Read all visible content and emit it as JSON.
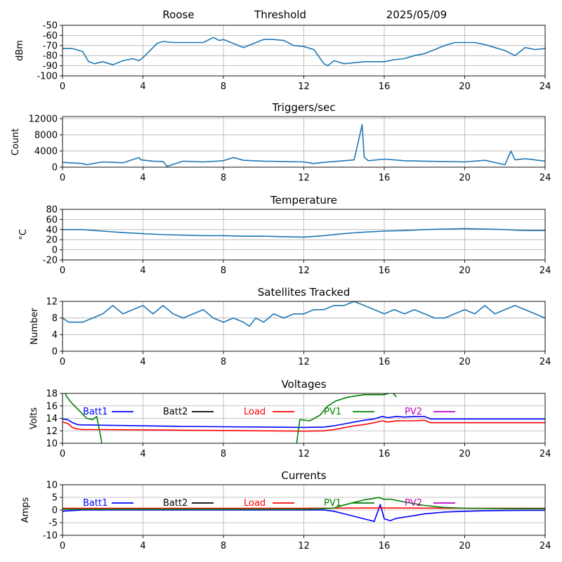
{
  "header": {
    "station": "Roose",
    "mode": "Threshold",
    "date": "2025/05/09"
  },
  "chart_data": [
    {
      "type": "line",
      "title": "",
      "xlabel": "",
      "ylabel": "dBm",
      "xlim": [
        0,
        24
      ],
      "ylim": [
        -100,
        -50
      ],
      "xticks": [
        0,
        4,
        8,
        12,
        16,
        20,
        24
      ],
      "yticks": [
        -100,
        -90,
        -80,
        -70,
        -60,
        -50
      ],
      "grid": true,
      "color": "#1f77b4",
      "series": [
        {
          "name": "",
          "x": [
            0,
            0.5,
            1,
            1.3,
            1.6,
            2,
            2.5,
            3,
            3.5,
            3.8,
            4,
            4.3,
            4.7,
            5,
            5.5,
            6,
            7,
            7.5,
            7.8,
            8,
            8.5,
            9,
            9.5,
            10,
            10.5,
            11,
            11.5,
            12,
            12.5,
            13,
            13.2,
            13.5,
            14,
            14.5,
            15,
            16,
            16.5,
            17,
            17.5,
            18,
            18.5,
            19,
            19.5,
            20,
            20.5,
            21,
            21.5,
            22,
            22.5,
            23,
            23.5,
            24
          ],
          "y": [
            -73,
            -73,
            -76,
            -86,
            -88,
            -86,
            -89,
            -85,
            -83,
            -85,
            -82,
            -76,
            -68,
            -66,
            -67,
            -67,
            -67,
            -62,
            -65,
            -64,
            -68,
            -72,
            -68,
            -64,
            -64,
            -65,
            -70,
            -71,
            -74,
            -88,
            -90,
            -85,
            -88,
            -87,
            -86,
            -86,
            -84,
            -83,
            -80,
            -78,
            -74,
            -70,
            -67,
            -67,
            -67,
            -69,
            -72,
            -75,
            -80,
            -72,
            -74,
            -73
          ]
        }
      ]
    },
    {
      "type": "line",
      "title": "Triggers/sec",
      "xlabel": "",
      "ylabel": "Count",
      "xlim": [
        0,
        24
      ],
      "ylim": [
        0,
        12500
      ],
      "xticks": [
        0,
        4,
        8,
        12,
        16,
        20,
        24
      ],
      "yticks": [
        0,
        4000,
        8000,
        12000
      ],
      "grid": true,
      "color": "#1f77b4",
      "series": [
        {
          "name": "",
          "x": [
            0,
            1,
            1.2,
            2,
            3,
            3.8,
            3.9,
            4.5,
            5,
            5.2,
            6,
            7,
            8,
            8.5,
            9,
            10,
            11,
            12,
            12.5,
            13,
            13.5,
            14,
            14.5,
            14.9,
            15,
            15.2,
            16,
            16.5,
            17,
            18,
            19,
            20,
            21,
            22,
            22.3,
            22.5,
            23,
            24
          ],
          "y": [
            1200,
            900,
            600,
            1300,
            1100,
            2400,
            1800,
            1500,
            1400,
            200,
            1500,
            1300,
            1600,
            2400,
            1700,
            1500,
            1400,
            1300,
            900,
            1200,
            1400,
            1600,
            1800,
            10500,
            2500,
            1600,
            2000,
            1800,
            1600,
            1500,
            1400,
            1300,
            1700,
            600,
            4000,
            1800,
            2100,
            1500
          ]
        }
      ]
    },
    {
      "type": "line",
      "title": "Temperature",
      "xlabel": "",
      "ylabel": "°C",
      "xlim": [
        0,
        24
      ],
      "ylim": [
        -20,
        80
      ],
      "xticks": [
        0,
        4,
        8,
        12,
        16,
        20,
        24
      ],
      "yticks": [
        -20,
        0,
        20,
        40,
        60,
        80
      ],
      "grid": true,
      "color": "#1f77b4",
      "series": [
        {
          "name": "",
          "x": [
            0,
            1,
            2,
            3,
            4,
            5,
            6,
            7,
            8,
            9,
            10,
            11,
            12,
            13,
            14,
            15,
            16,
            17,
            18,
            19,
            20,
            21,
            22,
            23,
            24
          ],
          "y": [
            40,
            40,
            37,
            34,
            32,
            30,
            29,
            28,
            28,
            27,
            27,
            26,
            25,
            28,
            32,
            35,
            37,
            38,
            40,
            41,
            42,
            41,
            40,
            38,
            38
          ]
        }
      ]
    },
    {
      "type": "line",
      "title": "Satellites Tracked",
      "xlabel": "",
      "ylabel": "Number",
      "xlim": [
        0,
        24
      ],
      "ylim": [
        0,
        12
      ],
      "xticks": [
        0,
        4,
        8,
        12,
        16,
        20,
        24
      ],
      "yticks": [
        0,
        4,
        8,
        12
      ],
      "grid": true,
      "color": "#1f77b4",
      "series": [
        {
          "name": "",
          "x": [
            0,
            0.3,
            1,
            1.5,
            2,
            2.5,
            3,
            3.5,
            4,
            4.5,
            5,
            5.5,
            6,
            6.5,
            7,
            7.5,
            8,
            8.5,
            9,
            9.3,
            9.6,
            10,
            10.5,
            11,
            11.5,
            12,
            12.5,
            13,
            13.5,
            14,
            14.5,
            15,
            15.5,
            16,
            16.5,
            17,
            17.5,
            18,
            18.5,
            19,
            19.5,
            20,
            20.5,
            21,
            21.5,
            22,
            22.5,
            23,
            23.5,
            24
          ],
          "y": [
            8,
            7,
            7,
            8,
            9,
            11,
            9,
            10,
            11,
            9,
            11,
            9,
            8,
            9,
            10,
            8,
            7,
            8,
            7,
            6,
            8,
            7,
            9,
            8,
            9,
            9,
            10,
            10,
            11,
            11,
            12,
            11,
            10,
            9,
            10,
            9,
            10,
            9,
            8,
            8,
            9,
            10,
            9,
            11,
            9,
            10,
            11,
            10,
            9,
            8
          ]
        }
      ]
    },
    {
      "type": "line",
      "title": "Voltages",
      "xlabel": "",
      "ylabel": "Volts",
      "xlim": [
        0,
        24
      ],
      "ylim": [
        10,
        18
      ],
      "xticks": [
        0,
        4,
        8,
        12,
        16,
        20,
        24
      ],
      "yticks": [
        10,
        12,
        14,
        16,
        18
      ],
      "grid": true,
      "legend": "top",
      "series": [
        {
          "name": "Batt1",
          "color": "#0000ff",
          "x": [
            0,
            0.25,
            0.5,
            0.75,
            1,
            2,
            4,
            6,
            8,
            10,
            12,
            13,
            13.5,
            14,
            14.5,
            15,
            15.5,
            15.9,
            16.2,
            16.6,
            17,
            17.5,
            18,
            18.3,
            19,
            20,
            22,
            24
          ],
          "y": [
            13.9,
            13.8,
            13.3,
            13.0,
            12.95,
            12.9,
            12.8,
            12.7,
            12.65,
            12.6,
            12.55,
            12.6,
            12.8,
            13.1,
            13.4,
            13.7,
            13.9,
            14.3,
            14.1,
            14.3,
            14.2,
            14.3,
            14.3,
            13.9,
            13.9,
            13.9,
            13.9,
            13.9
          ]
        },
        {
          "name": "Batt2",
          "color": "#000000",
          "x": [],
          "y": []
        },
        {
          "name": "Load",
          "color": "#ff0000",
          "x": [
            0,
            0.25,
            0.5,
            0.75,
            1,
            2,
            4,
            6,
            8,
            10,
            12,
            13,
            13.5,
            14,
            14.5,
            15,
            15.5,
            15.9,
            16.2,
            16.6,
            17,
            17.5,
            18,
            18.3,
            19,
            20,
            22,
            24
          ],
          "y": [
            13.4,
            13.2,
            12.5,
            12.3,
            12.2,
            12.2,
            12.15,
            12.1,
            12.05,
            12.0,
            11.95,
            12.0,
            12.2,
            12.5,
            12.8,
            13.0,
            13.3,
            13.6,
            13.4,
            13.6,
            13.6,
            13.6,
            13.7,
            13.3,
            13.3,
            13.3,
            13.3,
            13.3
          ]
        },
        {
          "name": "PV1",
          "color": "#008000",
          "x": [
            0,
            0.2,
            0.5,
            0.9,
            1.2,
            1.5,
            1.7,
            1.9,
            2.0,
            11.6,
            11.8,
            12.3,
            12.8,
            13.2,
            13.6,
            14.2,
            15.0,
            16.0,
            16.4,
            16.6
          ],
          "y": [
            19.5,
            17.5,
            16.3,
            15.0,
            14.0,
            13.8,
            14.3,
            11.0,
            9.0,
            9.0,
            13.8,
            13.6,
            14.5,
            16.0,
            16.8,
            17.4,
            17.8,
            17.8,
            18.2,
            17.4
          ]
        },
        {
          "name": "PV2",
          "color": "#c000c0",
          "x": [],
          "y": []
        }
      ]
    },
    {
      "type": "line",
      "title": "Currents",
      "xlabel": "",
      "ylabel": "Amps",
      "xlim": [
        0,
        24
      ],
      "ylim": [
        -10,
        10
      ],
      "xticks": [
        0,
        4,
        8,
        12,
        16,
        20,
        24
      ],
      "yticks": [
        -10,
        -5,
        0,
        5,
        10
      ],
      "grid": true,
      "legend": "top",
      "series": [
        {
          "name": "Batt1",
          "color": "#0000ff",
          "x": [
            0,
            0.3,
            1,
            4,
            8,
            12,
            13,
            13.5,
            14,
            14.5,
            15,
            15.5,
            15.8,
            16,
            16.3,
            16.6,
            17,
            17.5,
            18,
            19,
            20,
            21,
            22,
            23,
            24
          ],
          "y": [
            -0.5,
            -0.3,
            0,
            0,
            0,
            0,
            0,
            -0.5,
            -1.5,
            -2.5,
            -3.5,
            -4.5,
            2.2,
            -3.5,
            -4.2,
            -3.3,
            -2.8,
            -2.2,
            -1.5,
            -0.8,
            -0.5,
            -0.3,
            -0.2,
            -0.1,
            -0.1
          ]
        },
        {
          "name": "Batt2",
          "color": "#000000",
          "x": [],
          "y": []
        },
        {
          "name": "Load",
          "color": "#ff0000",
          "x": [
            0,
            4,
            8,
            12,
            16,
            20,
            24
          ],
          "y": [
            0.7,
            0.7,
            0.7,
            0.7,
            0.8,
            0.7,
            0.7
          ]
        },
        {
          "name": "PV1",
          "color": "#008000",
          "x": [
            0,
            4,
            8,
            12,
            13,
            13.5,
            14,
            14.5,
            15,
            15.5,
            15.7,
            16,
            16.3,
            16.6,
            17,
            17.5,
            18,
            19,
            20,
            21,
            22,
            23,
            24
          ],
          "y": [
            0.3,
            0.3,
            0.3,
            0.3,
            0.5,
            0.8,
            2.0,
            3.0,
            4.0,
            4.6,
            5.0,
            4.2,
            4.3,
            3.8,
            3.2,
            2.5,
            1.8,
            1.0,
            0.7,
            0.6,
            0.5,
            0.5,
            0.5
          ]
        },
        {
          "name": "PV2",
          "color": "#c000c0",
          "x": [],
          "y": []
        }
      ]
    }
  ]
}
